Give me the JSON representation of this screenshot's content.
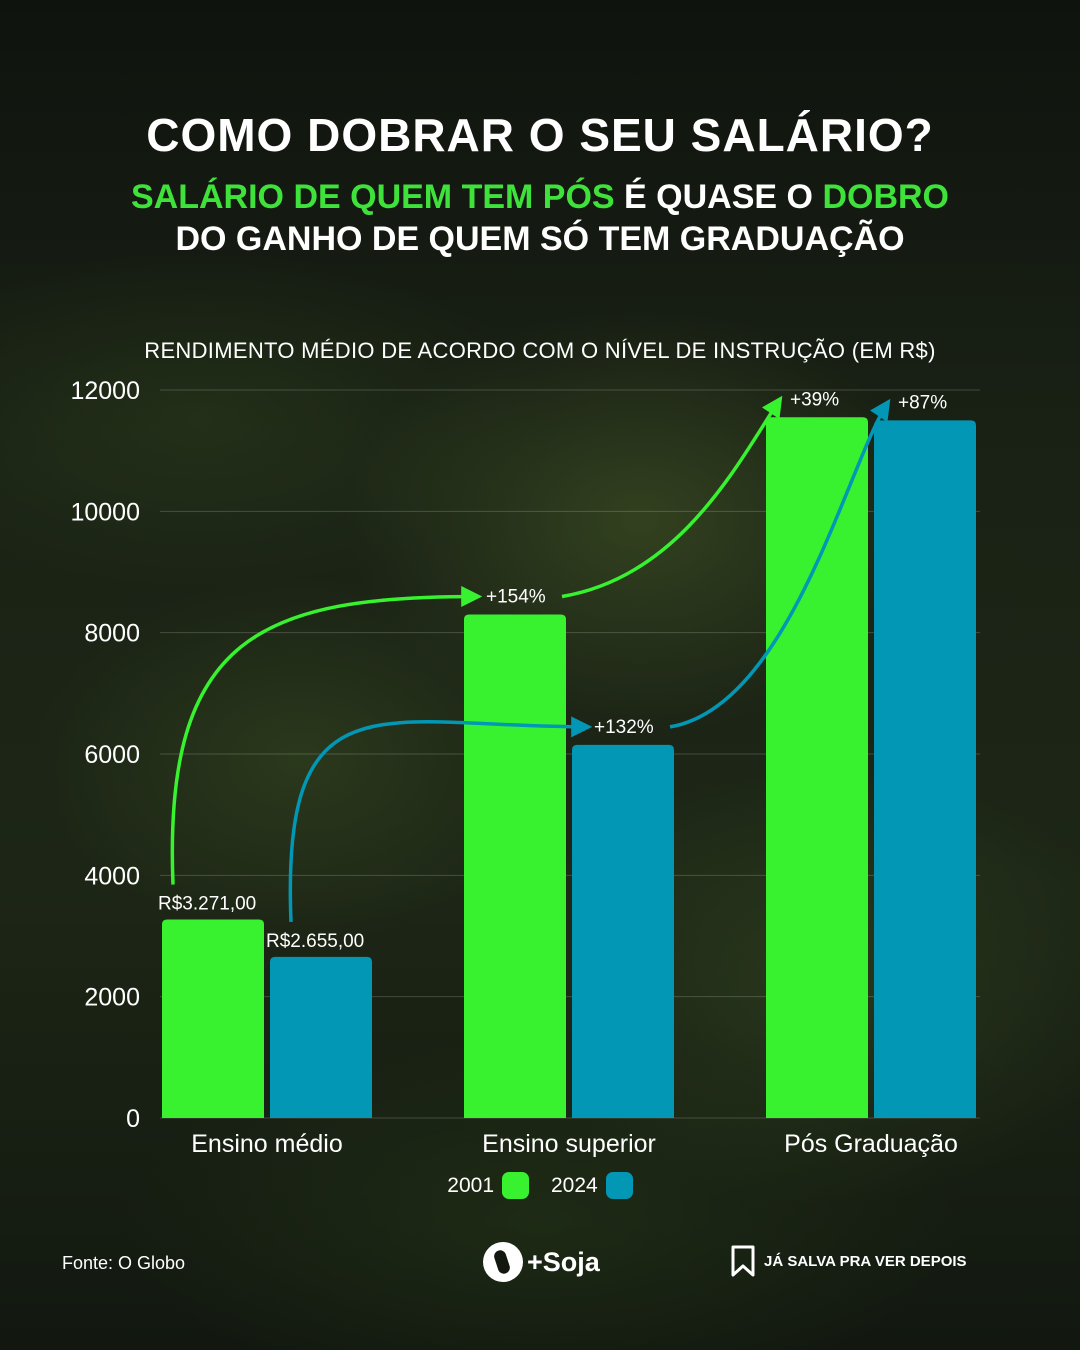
{
  "header": {
    "title": "COMO DOBRAR O SEU SALÁRIO?",
    "subtitle_parts": {
      "p1": "SALÁRIO DE QUEM TEM PÓS",
      "p2": "É QUASE O",
      "p3": "DOBRO",
      "p4": "DO GANHO DE QUEM SÓ TEM GRADUAÇÃO"
    }
  },
  "colors": {
    "accent_green": "#3fe23a",
    "series_2001": "#38f230",
    "series_2024": "#0197b5"
  },
  "chart_data": {
    "type": "bar",
    "title": "RENDIMENTO MÉDIO DE ACORDO COM O NÍVEL DE INSTRUÇÃO (EM R$)",
    "categories": [
      "Ensino médio",
      "Ensino superior",
      "Pós Graduação"
    ],
    "series": [
      {
        "name": "2001",
        "values": [
          3271,
          8300,
          11550
        ]
      },
      {
        "name": "2024",
        "values": [
          2655,
          6150,
          11500
        ]
      }
    ],
    "yticks": [
      "0",
      "2000",
      "4000",
      "6000",
      "8000",
      "10000",
      "12000"
    ],
    "ylim": [
      0,
      12000
    ],
    "grid": true,
    "legend": "bottom-center",
    "data_labels": {
      "2001": [
        "R$3.271,00",
        "+154%",
        "+39%"
      ],
      "2024": [
        "R$2.655,00",
        "+132%",
        "+87%"
      ]
    }
  },
  "footer": {
    "source": "Fonte: O Globo",
    "brand": "+Soja",
    "save_cta": "JÁ SALVA PRA VER DEPOIS"
  }
}
